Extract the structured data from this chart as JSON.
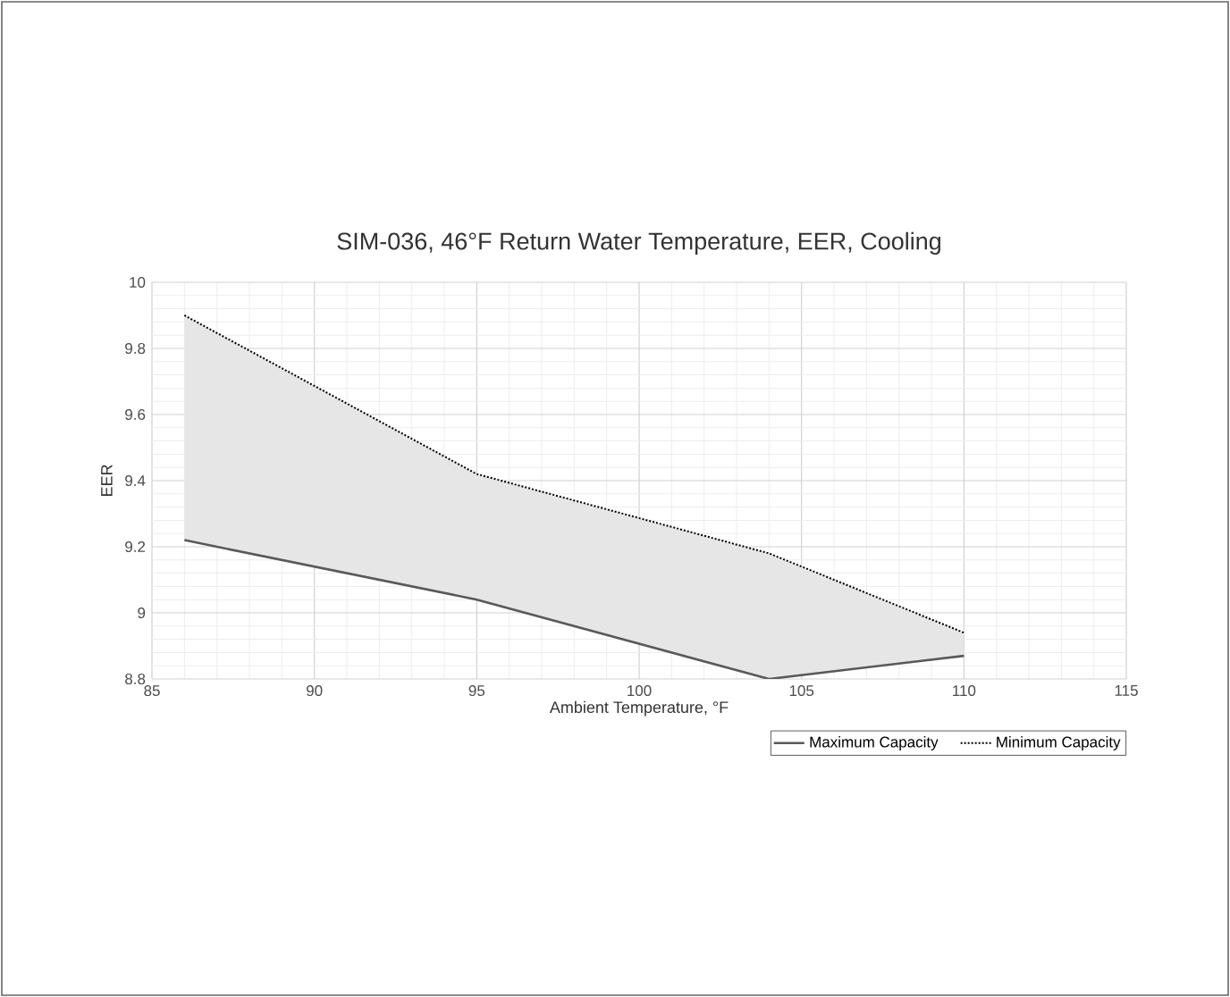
{
  "chart_data": {
    "type": "line",
    "title": "SIM-036, 46°F Return Water Temperature, EER, Cooling",
    "xlabel": "Ambient Temperature, °F",
    "ylabel": "EER",
    "xlim": [
      85,
      115
    ],
    "xticks": [
      85,
      90,
      95,
      100,
      105,
      110,
      115
    ],
    "ylim": [
      8.8,
      10
    ],
    "yticks": [
      8.8,
      9,
      9.2,
      9.4,
      9.6,
      9.8,
      10
    ],
    "grid": true,
    "legend": "bottom right",
    "marker": "none",
    "series": [
      {
        "name": "Maximum Capacity",
        "color": "#595959",
        "line_style": "solid",
        "x": [
          86,
          95,
          104,
          110
        ],
        "values": [
          9.22,
          9.04,
          8.8,
          8.87
        ]
      },
      {
        "name": "Minimum Capacity",
        "color": "#000000",
        "line_style": "dotted",
        "x": [
          86,
          95,
          104,
          110
        ],
        "values": [
          9.9,
          9.42,
          9.18,
          8.94
        ],
        "lower": [
          9.22,
          9.04,
          8.8,
          8.87
        ],
        "upper": [
          9.9,
          9.42,
          9.18,
          8.94
        ]
      }
    ]
  }
}
